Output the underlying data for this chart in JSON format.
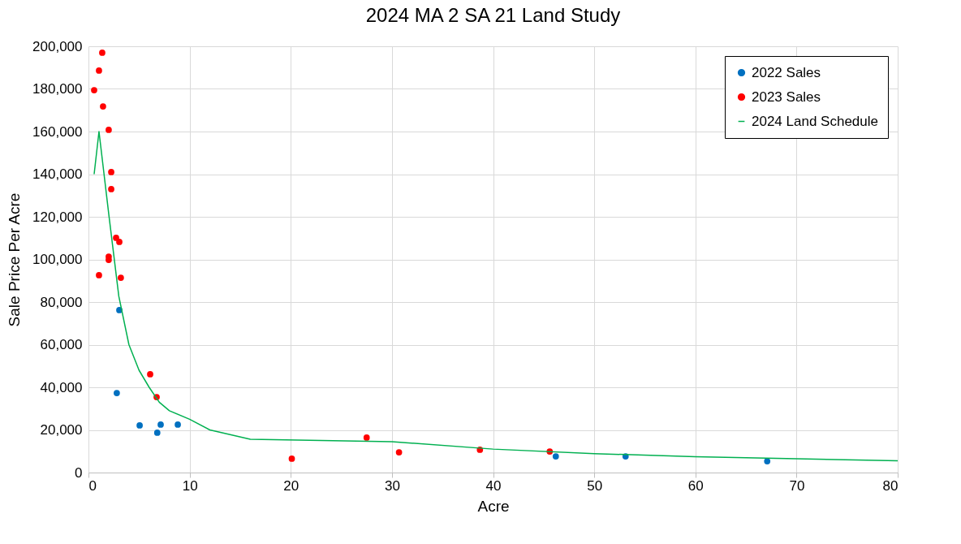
{
  "chart_data": {
    "type": "scatter",
    "title": "2024 MA 2 SA 21 Land Study",
    "xlabel": "Acre",
    "ylabel": "Sale Price Per Acre",
    "xlim": [
      0,
      80
    ],
    "xticks": [
      0,
      10,
      20,
      30,
      40,
      50,
      60,
      70,
      80
    ],
    "ylim": [
      0,
      200000
    ],
    "yticks": [
      {
        "value": 0,
        "label": "0"
      },
      {
        "value": 20000,
        "label": "20,000"
      },
      {
        "value": 40000,
        "label": "40,000"
      },
      {
        "value": 60000,
        "label": "60,000"
      },
      {
        "value": 80000,
        "label": "80,000"
      },
      {
        "value": 100000,
        "label": "100,000"
      },
      {
        "value": 120000,
        "label": "120,000"
      },
      {
        "value": 140000,
        "label": "140,000"
      },
      {
        "value": 160000,
        "label": "160,000"
      },
      {
        "value": 180000,
        "label": "180,000"
      },
      {
        "value": 200000,
        "label": "200,000"
      }
    ],
    "grid": true,
    "legend": "top right",
    "marker": "circle",
    "series": [
      {
        "name": "2022 Sales",
        "color": "#0070c0",
        "x": [
          3.05,
          2.8,
          5.06,
          6.8,
          7.14,
          8.83,
          46.2,
          53.1,
          67.1
        ],
        "values": [
          76200,
          37300,
          22100,
          18700,
          22500,
          22500,
          7600,
          7600,
          5300
        ]
      },
      {
        "name": "2023 Sales",
        "color": "#ff0000",
        "x": [
          1.36,
          1.04,
          0.56,
          1.44,
          2.0,
          2.25,
          2.25,
          2.73,
          3.05,
          2.0,
          2.0,
          1.04,
          3.2,
          6.1,
          6.74,
          20.1,
          27.5,
          30.7,
          38.7,
          45.6
        ],
        "values": [
          197000,
          188600,
          179400,
          171800,
          160800,
          141000,
          133000,
          110100,
          108200,
          101300,
          99800,
          92600,
          91400,
          46100,
          35400,
          6500,
          16400,
          9500,
          10700,
          9900
        ]
      },
      {
        "name": "2024 Land Schedule",
        "type": "line",
        "color": "#00b050",
        "marker": "none",
        "x": [
          0.56,
          1.04,
          2,
          3,
          4,
          5,
          6,
          7,
          8,
          10,
          12,
          16,
          30,
          40,
          50,
          60,
          70,
          80
        ],
        "values": [
          140000,
          160000,
          121500,
          82700,
          60000,
          48000,
          40000,
          33000,
          29000,
          25000,
          20000,
          15600,
          14500,
          11000,
          8900,
          7400,
          6500,
          5500
        ]
      }
    ]
  }
}
